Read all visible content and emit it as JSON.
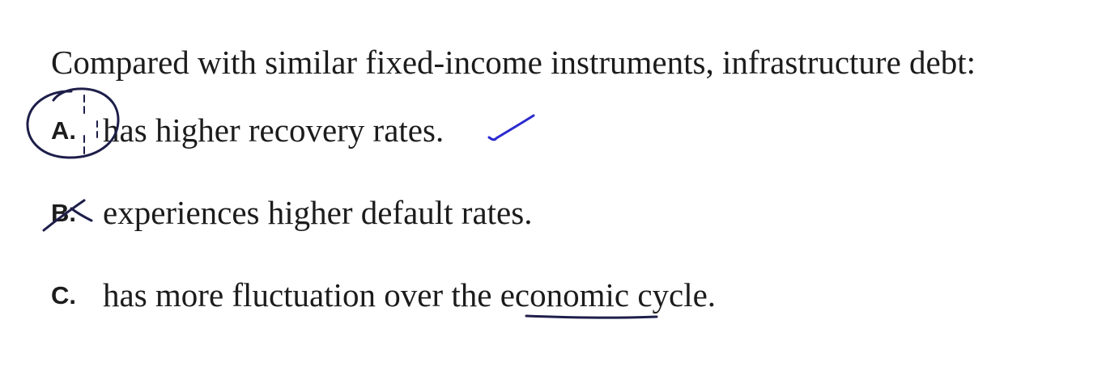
{
  "question": {
    "stem": "Compared with similar fixed-income instruments, infrastructure debt:"
  },
  "options": [
    {
      "letter": "A.",
      "text": "has higher recovery rates."
    },
    {
      "letter": "B.",
      "text": "experiences higher default rates."
    },
    {
      "letter": "C.",
      "text": "has more fluctuation over the economic cycle."
    }
  ],
  "annotations": {
    "ink_blue": "#2a2ad0",
    "ink_dark": "#1e1e4a"
  }
}
